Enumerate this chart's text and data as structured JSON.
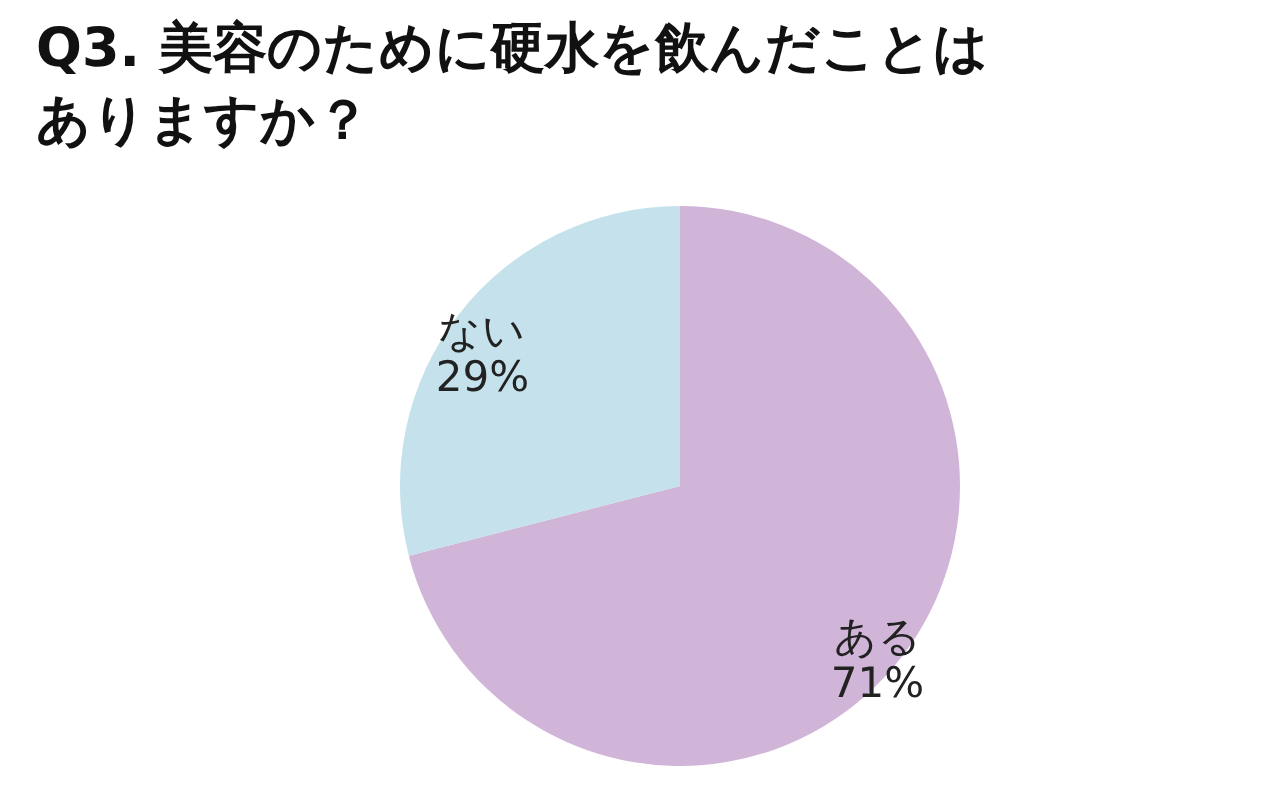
{
  "chart_data": {
    "type": "pie",
    "title": "Q3. 美容のために硬水を飲んだことはありますか？",
    "categories": [
      "ある",
      "ない"
    ],
    "values": [
      71,
      29
    ],
    "colors": [
      "#d1b5d8",
      "#c5e2ec"
    ],
    "value_labels": [
      "71%",
      "29%"
    ]
  }
}
